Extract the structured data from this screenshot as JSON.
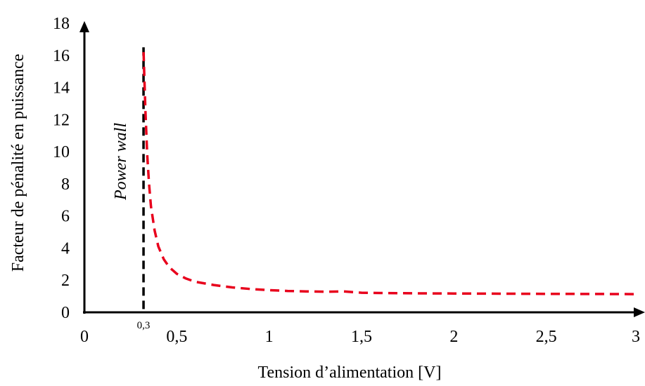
{
  "chart_data": {
    "type": "line",
    "title": "",
    "xlabel": "Tension d’alimentation [V]",
    "ylabel": "Facteur de pénalité en puissance",
    "xlim": [
      0,
      3
    ],
    "ylim": [
      0,
      18
    ],
    "x_ticks": [
      {
        "value": 0,
        "label": "0"
      },
      {
        "value": 0.5,
        "label": "0,5"
      },
      {
        "value": 1,
        "label": "1"
      },
      {
        "value": 1.5,
        "label": "1,5"
      },
      {
        "value": 2,
        "label": "2"
      },
      {
        "value": 2.5,
        "label": "2,5"
      },
      {
        "value": 3,
        "label": "3"
      }
    ],
    "y_ticks": [
      {
        "value": 0,
        "label": "0"
      },
      {
        "value": 2,
        "label": "2"
      },
      {
        "value": 4,
        "label": "4"
      },
      {
        "value": 6,
        "label": "6"
      },
      {
        "value": 8,
        "label": "8"
      },
      {
        "value": 10,
        "label": "10"
      },
      {
        "value": 12,
        "label": "12"
      },
      {
        "value": 14,
        "label": "14"
      },
      {
        "value": 16,
        "label": "16"
      },
      {
        "value": 18,
        "label": "18"
      }
    ],
    "grid": false,
    "series": [
      {
        "color": "#e8001c",
        "style": "dashed",
        "x": [
          0.32,
          0.33,
          0.34,
          0.35,
          0.36,
          0.38,
          0.4,
          0.43,
          0.46,
          0.5,
          0.55,
          0.6,
          0.7,
          0.8,
          0.9,
          1.0,
          1.1,
          1.2,
          1.3,
          1.4,
          1.5,
          1.6,
          1.8,
          2.0,
          2.2,
          2.5,
          2.8,
          3.0
        ],
        "y": [
          16.2,
          12.6,
          9.8,
          8.0,
          6.6,
          5.1,
          4.1,
          3.3,
          2.8,
          2.4,
          2.1,
          1.9,
          1.7,
          1.55,
          1.45,
          1.38,
          1.33,
          1.3,
          1.28,
          1.3,
          1.22,
          1.2,
          1.18,
          1.17,
          1.16,
          1.15,
          1.14,
          1.13
        ]
      }
    ],
    "reference_line": {
      "x": 0.32,
      "y_top": 16.5,
      "color": "#000000",
      "style": "dashed",
      "label": "Power wall",
      "x_annotation": "0,3"
    }
  }
}
